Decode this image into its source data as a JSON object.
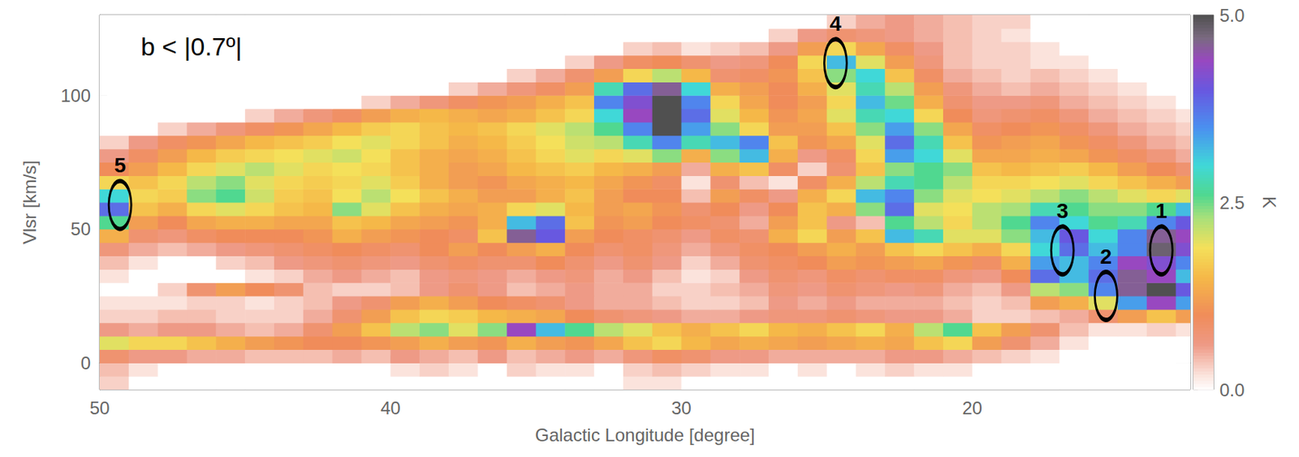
{
  "chart_data": {
    "type": "heatmap",
    "title": "b < |0.7º|",
    "x_label": "Galactic Longitude [degree]",
    "y_label": "Vlsr [km/s]",
    "xlim": [
      50,
      12.5
    ],
    "ylim": [
      -10,
      130
    ],
    "xticks": [
      50,
      40,
      30,
      20
    ],
    "yticks": [
      0,
      50,
      100
    ],
    "x": [
      49.5,
      48.5,
      47.5,
      46.5,
      45.5,
      44.5,
      43.5,
      42.5,
      41.5,
      40.5,
      39.5,
      38.5,
      37.5,
      36.5,
      35.5,
      34.5,
      33.5,
      32.5,
      31.5,
      30.5,
      29.5,
      28.5,
      27.5,
      26.5,
      25.5,
      24.5,
      23.5,
      22.5,
      21.5,
      20.5,
      19.5,
      18.5,
      17.5,
      16.5,
      15.5,
      14.5,
      13.5,
      12.5
    ],
    "y": [
      -7.5,
      -2.5,
      2.5,
      7.5,
      12.5,
      17.5,
      22.5,
      27.5,
      32.5,
      37.5,
      42.5,
      47.5,
      52.5,
      57.5,
      62.5,
      67.5,
      72.5,
      77.5,
      82.5,
      87.5,
      92.5,
      97.5,
      102.5,
      107.5,
      112.5,
      117.5,
      122.5,
      127.5
    ],
    "cells": [
      [
        0.3,
        0,
        0,
        0,
        0,
        0,
        0,
        0,
        0,
        0,
        0,
        0,
        0,
        0,
        0,
        0,
        0,
        0,
        0.2,
        0.2,
        0,
        0,
        0,
        0,
        0,
        0,
        0,
        0,
        0,
        0,
        0,
        0,
        0,
        0,
        0,
        0,
        0,
        0
      ],
      [
        0.4,
        0.2,
        0,
        0,
        0,
        0,
        0,
        0,
        0,
        0,
        0.2,
        0.3,
        0.2,
        0,
        0.3,
        0.2,
        0.2,
        0,
        0.3,
        0.4,
        0.3,
        0.2,
        0.2,
        0,
        0.2,
        0,
        0.2,
        0.3,
        0.2,
        0.2,
        0,
        0,
        0,
        0,
        0,
        0,
        0,
        0
      ],
      [
        0.8,
        0.6,
        0.6,
        0.5,
        0.5,
        0.4,
        0.4,
        0.4,
        0.5,
        0.4,
        0.6,
        0.5,
        0.4,
        0.6,
        0.4,
        0.5,
        0.6,
        0.5,
        0.7,
        0.9,
        0.8,
        0.6,
        0.6,
        0.5,
        0.5,
        0.5,
        0.5,
        0.6,
        0.6,
        0.5,
        0.4,
        0.3,
        0.2,
        0,
        0,
        0,
        0,
        0
      ],
      [
        2.0,
        1.8,
        1.8,
        1.6,
        1.4,
        1.2,
        1.1,
        1.0,
        1.0,
        1.1,
        1.2,
        1.4,
        1.2,
        1.1,
        1.4,
        1.2,
        1.1,
        1.3,
        1.6,
        1.8,
        1.5,
        1.3,
        1.4,
        1.3,
        1.2,
        1.3,
        1.4,
        1.3,
        1.6,
        1.8,
        1.2,
        0.8,
        0.5,
        0.2,
        0,
        0,
        0,
        0
      ],
      [
        0.6,
        0.5,
        0.6,
        0.6,
        0.5,
        0.4,
        0.5,
        0.8,
        1.2,
        1.6,
        2.2,
        2.4,
        2.0,
        2.4,
        4.4,
        3.2,
        2.6,
        2.2,
        2.0,
        1.6,
        1.4,
        1.6,
        1.8,
        1.5,
        1.4,
        1.6,
        1.8,
        1.4,
        2.2,
        2.6,
        1.6,
        1.2,
        0.8,
        0.4,
        0.2,
        0.2,
        0.3,
        0.2
      ],
      [
        0.3,
        0.3,
        0.4,
        0.4,
        0.3,
        0.3,
        0.3,
        0.5,
        0.8,
        1.2,
        1.6,
        1.8,
        1.7,
        1.5,
        1.4,
        1.3,
        1.0,
        0.8,
        0.7,
        0.6,
        0.5,
        0.5,
        0.6,
        0.7,
        0.7,
        0.8,
        0.7,
        0.6,
        0.6,
        0.5,
        0.3,
        0.3,
        0.4,
        0.5,
        0.8,
        1.2,
        1.6,
        1.2
      ],
      [
        0.2,
        0.2,
        0.2,
        0.3,
        0.3,
        0.2,
        0.3,
        0.4,
        0.6,
        0.8,
        1.2,
        1.4,
        1.2,
        1.0,
        0.9,
        0.8,
        0.6,
        0.5,
        0.5,
        0.4,
        0.3,
        0.3,
        0.4,
        0.6,
        0.5,
        0.6,
        0.5,
        0.5,
        0.5,
        0.4,
        0.3,
        0.4,
        1.2,
        1.4,
        2.0,
        3.4,
        4.4,
        3.4
      ],
      [
        0,
        0,
        0.3,
        0.8,
        1.2,
        1.0,
        0.8,
        0.4,
        0.3,
        0.3,
        0.4,
        0.6,
        0.8,
        0.6,
        0.4,
        0.5,
        0.6,
        0.5,
        0.5,
        0.3,
        0.3,
        0.4,
        0.5,
        0.7,
        0.6,
        0.8,
        0.7,
        0.6,
        0.7,
        0.5,
        0.4,
        0.6,
        2.2,
        2.4,
        3.6,
        4.6,
        5.0,
        4.0
      ],
      [
        0.2,
        0,
        0,
        0,
        0,
        0.2,
        0.3,
        0.5,
        0.6,
        0.5,
        0.4,
        0.6,
        0.7,
        0.6,
        0.5,
        0.6,
        0.7,
        0.5,
        0.6,
        0.4,
        0.2,
        0.3,
        0.6,
        0.8,
        0.7,
        0.9,
        0.8,
        0.9,
        0.9,
        0.7,
        0.6,
        1.0,
        3.8,
        3.2,
        3.8,
        4.6,
        4.4,
        3.2
      ],
      [
        0.4,
        0.2,
        0,
        0,
        0.3,
        0.4,
        0.6,
        0.7,
        0.8,
        0.7,
        0.6,
        0.8,
        0.9,
        0.8,
        0.8,
        1.0,
        0.8,
        0.6,
        0.8,
        0.6,
        0.3,
        0.5,
        0.8,
        0.9,
        1.0,
        1.2,
        1.1,
        1.2,
        1.3,
        1.1,
        0.9,
        1.4,
        3.4,
        3.2,
        3.6,
        4.4,
        4.2,
        3.6
      ],
      [
        0.7,
        0.5,
        0.4,
        0.5,
        0.6,
        0.7,
        0.8,
        0.9,
        1.0,
        0.9,
        0.8,
        1.0,
        1.2,
        1.0,
        1.2,
        1.4,
        1.0,
        0.8,
        0.9,
        0.7,
        0.5,
        0.7,
        0.9,
        1.0,
        1.2,
        1.4,
        1.2,
        1.6,
        1.8,
        1.6,
        1.4,
        1.8,
        3.0,
        3.8,
        3.2,
        3.6,
        4.8,
        4.2
      ],
      [
        1.4,
        0.8,
        0.7,
        0.9,
        1.0,
        1.0,
        1.0,
        1.1,
        1.4,
        1.2,
        1.1,
        1.0,
        0.9,
        1.6,
        4.6,
        4.0,
        1.2,
        1.0,
        0.9,
        0.8,
        0.6,
        0.9,
        0.8,
        1.4,
        1.8,
        1.2,
        1.6,
        3.2,
        2.8,
        2.0,
        2.0,
        2.4,
        3.2,
        4.0,
        3.0,
        3.6,
        4.6,
        4.4
      ],
      [
        2.6,
        1.2,
        1.0,
        1.3,
        1.4,
        1.4,
        1.3,
        1.3,
        1.6,
        1.5,
        1.3,
        1.2,
        1.1,
        1.4,
        3.2,
        3.8,
        1.6,
        1.1,
        1.2,
        1.0,
        0.9,
        0.8,
        0.5,
        1.2,
        1.6,
        0.6,
        0.4,
        2.6,
        2.2,
        1.8,
        2.2,
        2.6,
        3.6,
        3.0,
        2.6,
        2.8,
        3.6,
        4.0
      ],
      [
        3.8,
        1.6,
        1.4,
        1.8,
        2.0,
        1.8,
        1.6,
        1.5,
        2.4,
        2.0,
        1.6,
        1.4,
        1.3,
        1.4,
        1.8,
        2.0,
        1.5,
        1.2,
        1.3,
        1.1,
        0.8,
        1.0,
        0.6,
        1.0,
        1.6,
        1.4,
        2.4,
        3.8,
        2.0,
        1.9,
        2.2,
        2.3,
        2.8,
        2.6,
        2.4,
        2.4,
        2.6,
        3.2
      ],
      [
        3.0,
        1.8,
        1.7,
        2.4,
        2.6,
        2.1,
        1.7,
        1.6,
        1.9,
        2.2,
        1.9,
        1.6,
        1.4,
        1.2,
        1.2,
        1.4,
        1.6,
        1.2,
        1.0,
        1.0,
        0.4,
        1.2,
        0.9,
        0.6,
        1.4,
        1.8,
        3.2,
        3.6,
        2.4,
        2.0,
        1.9,
        2.0,
        2.2,
        2.4,
        2.2,
        2.0,
        1.8,
        2.0
      ],
      [
        1.8,
        1.6,
        1.8,
        2.2,
        2.4,
        2.0,
        1.8,
        1.7,
        1.8,
        2.0,
        1.7,
        1.4,
        1.2,
        1.1,
        1.3,
        1.4,
        1.5,
        1.3,
        1.1,
        0.9,
        0.2,
        0.8,
        0.4,
        0.2,
        0.9,
        1.4,
        2.2,
        2.8,
        2.6,
        2.2,
        1.8,
        1.8,
        1.9,
        2.0,
        1.8,
        1.6,
        1.4,
        1.2
      ],
      [
        1.0,
        1.2,
        1.5,
        1.8,
        2.0,
        2.2,
        2.0,
        1.8,
        1.9,
        1.8,
        1.6,
        1.4,
        1.2,
        1.3,
        1.5,
        1.6,
        1.7,
        1.5,
        1.4,
        1.2,
        0.5,
        1.4,
        1.6,
        0.9,
        0.3,
        0.8,
        1.6,
        2.4,
        2.6,
        2.4,
        1.6,
        1.5,
        1.6,
        1.7,
        1.5,
        1.2,
        1.0,
        0.8
      ],
      [
        0.6,
        0.9,
        1.2,
        1.5,
        1.7,
        1.8,
        1.9,
        2.0,
        2.1,
        1.9,
        1.6,
        1.4,
        1.3,
        1.4,
        1.6,
        1.8,
        2.0,
        1.8,
        2.0,
        2.4,
        1.4,
        2.4,
        3.2,
        1.4,
        0.6,
        0.9,
        1.8,
        3.4,
        3.0,
        2.0,
        1.3,
        1.3,
        1.4,
        1.3,
        1.1,
        0.9,
        0.7,
        0.5
      ],
      [
        0.3,
        0.6,
        0.9,
        1.1,
        1.3,
        1.5,
        1.6,
        1.7,
        1.9,
        2.0,
        1.8,
        1.6,
        1.4,
        1.5,
        1.7,
        1.9,
        2.1,
        2.2,
        2.8,
        3.6,
        2.8,
        3.2,
        3.6,
        1.6,
        1.1,
        1.3,
        2.0,
        3.8,
        2.8,
        1.6,
        1.1,
        1.2,
        1.3,
        1.1,
        0.9,
        0.7,
        0.5,
        0.4
      ],
      [
        0,
        0,
        0.3,
        0.5,
        0.7,
        0.9,
        1.1,
        1.3,
        1.5,
        1.7,
        1.8,
        1.6,
        1.5,
        1.6,
        1.8,
        2.0,
        2.2,
        2.6,
        3.6,
        5.0,
        3.4,
        2.4,
        1.8,
        1.2,
        1.2,
        1.6,
        2.4,
        3.4,
        2.4,
        1.3,
        0.9,
        1.0,
        1.1,
        0.9,
        0.7,
        0.5,
        0.4,
        0.3
      ],
      [
        0,
        0,
        0,
        0,
        0,
        0.3,
        0.5,
        0.7,
        0.9,
        1.2,
        1.4,
        1.5,
        1.4,
        1.3,
        1.4,
        1.6,
        1.8,
        3.0,
        4.4,
        5.0,
        3.8,
        2.0,
        1.5,
        1.1,
        1.3,
        2.0,
        2.8,
        3.0,
        1.8,
        1.0,
        0.7,
        0.8,
        0.9,
        0.7,
        0.5,
        0.4,
        0.3,
        0.2
      ],
      [
        0,
        0,
        0,
        0,
        0,
        0,
        0,
        0,
        0,
        0.3,
        0.5,
        0.7,
        0.9,
        1.1,
        1.2,
        1.4,
        1.6,
        3.6,
        4.2,
        5.0,
        3.6,
        1.8,
        1.3,
        1.0,
        1.2,
        1.8,
        3.2,
        2.5,
        1.4,
        0.8,
        0.6,
        0.6,
        0.7,
        0.5,
        0.4,
        0.3,
        0.2,
        0
      ],
      [
        0,
        0,
        0,
        0,
        0,
        0,
        0,
        0,
        0,
        0,
        0,
        0,
        0.3,
        0.5,
        0.7,
        0.9,
        1.2,
        2.8,
        3.8,
        4.6,
        3.0,
        1.4,
        1.2,
        1.0,
        1.4,
        2.0,
        2.8,
        2.2,
        1.2,
        0.7,
        0.5,
        0.4,
        0.5,
        0.4,
        0.3,
        0.2,
        0,
        0
      ],
      [
        0,
        0,
        0,
        0,
        0,
        0,
        0,
        0,
        0,
        0,
        0,
        0,
        0,
        0,
        0.3,
        0.5,
        0.8,
        1.2,
        1.8,
        2.2,
        1.5,
        0.8,
        0.9,
        1.1,
        1.6,
        2.4,
        3.0,
        1.6,
        0.9,
        0.5,
        0.4,
        0.3,
        0.4,
        0.3,
        0.2,
        0,
        0,
        0
      ],
      [
        0,
        0,
        0,
        0,
        0,
        0,
        0,
        0,
        0,
        0,
        0,
        0,
        0,
        0,
        0,
        0,
        0.3,
        0.6,
        0.9,
        1.0,
        0.8,
        0.6,
        0.7,
        1.0,
        1.8,
        3.2,
        2.0,
        1.2,
        0.7,
        0.4,
        0.3,
        0.3,
        0.2,
        0.2,
        0,
        0,
        0,
        0
      ],
      [
        0,
        0,
        0,
        0,
        0,
        0,
        0,
        0,
        0,
        0,
        0,
        0,
        0,
        0,
        0,
        0,
        0,
        0,
        0.3,
        0.4,
        0.2,
        0.3,
        0.4,
        0.6,
        1.2,
        1.8,
        1.3,
        0.9,
        0.6,
        0.4,
        0.3,
        0.3,
        0.2,
        0,
        0,
        0,
        0,
        0
      ],
      [
        0,
        0,
        0,
        0,
        0,
        0,
        0,
        0,
        0,
        0,
        0,
        0,
        0,
        0,
        0,
        0,
        0,
        0,
        0,
        0,
        0,
        0,
        0,
        0.3,
        0.6,
        0.8,
        0.7,
        0.6,
        0.5,
        0.4,
        0.3,
        0.2,
        0,
        0,
        0,
        0,
        0,
        0
      ],
      [
        0,
        0,
        0,
        0,
        0,
        0,
        0,
        0,
        0,
        0,
        0,
        0,
        0,
        0,
        0,
        0,
        0,
        0,
        0,
        0,
        0,
        0,
        0,
        0,
        0,
        0.3,
        0.5,
        0.6,
        0.5,
        0.4,
        0.3,
        0.3,
        0,
        0,
        0,
        0,
        0,
        0
      ]
    ],
    "colorbar": {
      "range": [
        0,
        5
      ],
      "ticks": [
        {
          "value": 0,
          "label": "0.0"
        },
        {
          "value": 2.5,
          "label": "2.5"
        },
        {
          "value": 5,
          "label": "5.0"
        }
      ],
      "label": "K"
    },
    "annotations": [
      {
        "label": "1",
        "x": 13.5,
        "y": 42
      },
      {
        "label": "2",
        "x": 15.4,
        "y": 25
      },
      {
        "label": "3",
        "x": 16.9,
        "y": 42
      },
      {
        "label": "4",
        "x": 24.7,
        "y": 112
      },
      {
        "label": "5",
        "x": 49.3,
        "y": 59
      }
    ]
  }
}
